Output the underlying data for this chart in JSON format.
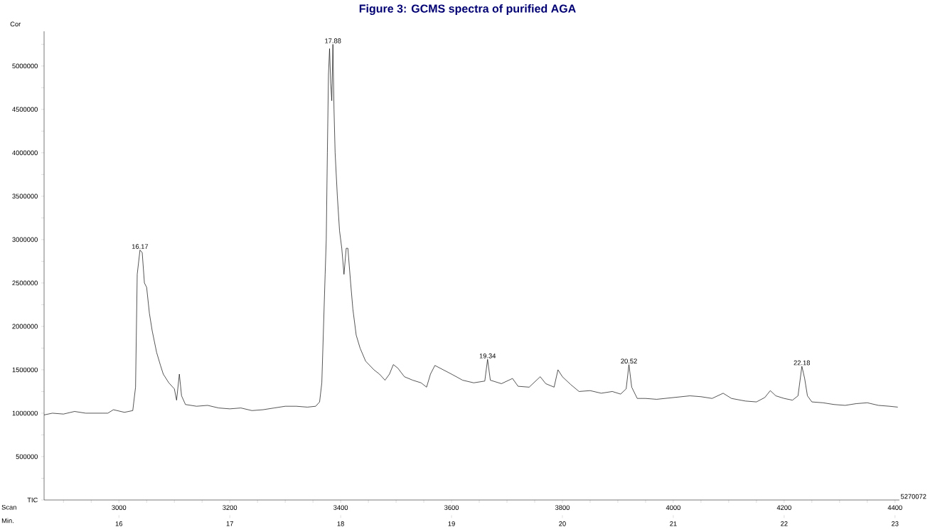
{
  "chart_data": {
    "type": "line",
    "title": "Figure 3: GCMS spectra of purified AGA",
    "ylabel": "Cor",
    "xlabel": "Scan",
    "x2label": "Min.",
    "series": [
      {
        "color": "#000000",
        "x": [
          2865,
          2880,
          2900,
          2920,
          2940,
          2980,
          2990,
          3010,
          3025,
          3030,
          3033,
          3038,
          3042,
          3046,
          3050,
          3055,
          3060,
          3068,
          3075,
          3080,
          3090,
          3100,
          3104,
          3109,
          3113,
          3120,
          3140,
          3160,
          3180,
          3200,
          3220,
          3240,
          3260,
          3280,
          3300,
          3320,
          3340,
          3355,
          3362,
          3366,
          3372,
          3374,
          3376,
          3378,
          3380,
          3382,
          3384,
          3386,
          3388,
          3390,
          3394,
          3398,
          3402,
          3406,
          3410,
          3413,
          3418,
          3422,
          3428,
          3435,
          3445,
          3460,
          3470,
          3480,
          3488,
          3495,
          3503,
          3515,
          3530,
          3545,
          3555,
          3562,
          3570,
          3585,
          3600,
          3620,
          3640,
          3660,
          3665,
          3670,
          3690,
          3710,
          3720,
          3740,
          3760,
          3770,
          3785,
          3792,
          3800,
          3815,
          3830,
          3850,
          3870,
          3890,
          3905,
          3915,
          3920,
          3925,
          3935,
          3950,
          3970,
          4000,
          4030,
          4050,
          4070,
          4090,
          4105,
          4130,
          4150,
          4165,
          4175,
          4185,
          4200,
          4215,
          4225,
          4232,
          4237,
          4242,
          4250,
          4270,
          4290,
          4310,
          4330,
          4350,
          4370,
          4390,
          4405
        ],
        "values": [
          980000,
          1000000,
          990000,
          1020000,
          1000000,
          1000000,
          1040000,
          1010000,
          1030000,
          1300000,
          2600000,
          2880000,
          2850000,
          2500000,
          2450000,
          2150000,
          1950000,
          1700000,
          1550000,
          1450000,
          1350000,
          1280000,
          1150000,
          1450000,
          1200000,
          1100000,
          1080000,
          1090000,
          1060000,
          1050000,
          1060000,
          1030000,
          1040000,
          1060000,
          1080000,
          1080000,
          1070000,
          1080000,
          1130000,
          1350000,
          2600000,
          3000000,
          4000000,
          4900000,
          5200000,
          4800000,
          4600000,
          5250000,
          4500000,
          4000000,
          3500000,
          3100000,
          2900000,
          2600000,
          2900000,
          2900000,
          2500000,
          2200000,
          1900000,
          1750000,
          1600000,
          1500000,
          1450000,
          1380000,
          1450000,
          1560000,
          1520000,
          1420000,
          1380000,
          1350000,
          1300000,
          1450000,
          1550000,
          1500000,
          1450000,
          1380000,
          1350000,
          1370000,
          1620000,
          1380000,
          1340000,
          1400000,
          1310000,
          1300000,
          1420000,
          1340000,
          1300000,
          1500000,
          1420000,
          1330000,
          1250000,
          1260000,
          1230000,
          1250000,
          1220000,
          1280000,
          1560000,
          1300000,
          1170000,
          1170000,
          1160000,
          1180000,
          1200000,
          1190000,
          1170000,
          1230000,
          1170000,
          1140000,
          1130000,
          1180000,
          1260000,
          1200000,
          1170000,
          1150000,
          1200000,
          1540000,
          1400000,
          1200000,
          1130000,
          1120000,
          1100000,
          1090000,
          1110000,
          1120000,
          1090000,
          1080000,
          1070000
        ]
      }
    ],
    "marker": "none",
    "xlim": [
      2865,
      4408
    ],
    "ylim": [
      0,
      5400000
    ],
    "x2lim": [
      15.325,
      23.04
    ],
    "xticks": [
      {
        "value": 2900,
        "label": null
      },
      {
        "value": 2950,
        "label": null
      },
      3000,
      {
        "value": 3050,
        "label": null
      },
      {
        "value": 3100,
        "label": null
      },
      {
        "value": 3150,
        "label": null
      },
      3200,
      {
        "value": 3250,
        "label": null
      },
      {
        "value": 3300,
        "label": null
      },
      {
        "value": 3350,
        "label": null
      },
      3400,
      {
        "value": 3450,
        "label": null
      },
      {
        "value": 3500,
        "label": null
      },
      {
        "value": 3550,
        "label": null
      },
      3600,
      {
        "value": 3650,
        "label": null
      },
      {
        "value": 3700,
        "label": null
      },
      {
        "value": 3750,
        "label": null
      },
      3800,
      {
        "value": 3850,
        "label": null
      },
      {
        "value": 3900,
        "label": null
      },
      {
        "value": 3950,
        "label": null
      },
      4000,
      {
        "value": 4050,
        "label": null
      },
      {
        "value": 4100,
        "label": null
      },
      {
        "value": 4150,
        "label": null
      },
      4200,
      {
        "value": 4250,
        "label": null
      },
      {
        "value": 4300,
        "label": null
      },
      {
        "value": 4350,
        "label": null
      },
      4400
    ],
    "x2ticks": [
      16,
      17,
      18,
      19,
      20,
      21,
      22,
      23
    ],
    "yticks": [
      {
        "value": 0,
        "label": "TIC"
      },
      {
        "value": 250000,
        "label": null
      },
      500000,
      {
        "value": 750000,
        "label": null
      },
      1000000,
      {
        "value": 1250000,
        "label": null
      },
      1500000,
      {
        "value": 1750000,
        "label": null
      },
      2000000,
      {
        "value": 2250000,
        "label": null
      },
      2500000,
      {
        "value": 2750000,
        "label": null
      },
      3000000,
      {
        "value": 3250000,
        "label": null
      },
      3500000,
      {
        "value": 3750000,
        "label": null
      },
      4000000,
      {
        "value": 4250000,
        "label": null
      },
      4500000,
      {
        "value": 4750000,
        "label": null
      },
      5000000,
      {
        "value": 5250000,
        "label": null
      }
    ],
    "annotations": [
      {
        "text": "16.17",
        "x": 3038,
        "y": 2880000
      },
      {
        "text": "17.88",
        "x": 3386,
        "y": 5250000
      },
      {
        "text": "19.34",
        "x": 3665,
        "y": 1620000
      },
      {
        "text": "20.52",
        "x": 3920,
        "y": 1560000
      },
      {
        "text": "22.18",
        "x": 4232,
        "y": 1540000
      },
      "5270072"
    ]
  }
}
